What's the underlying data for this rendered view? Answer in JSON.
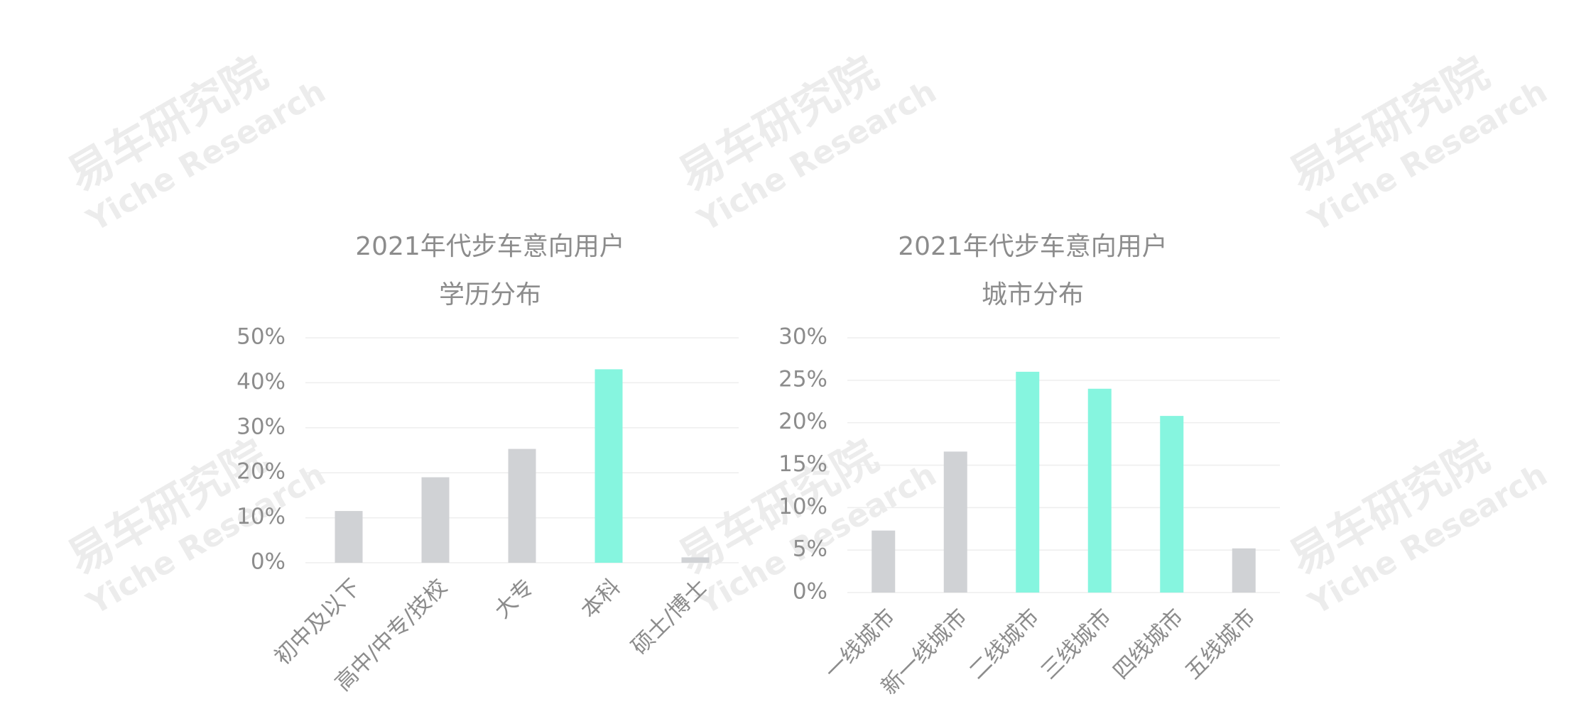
{
  "watermark": {
    "title": "易车研究院",
    "subtitle": "Yiche Research"
  },
  "chart_data": [
    {
      "type": "bar",
      "title": "2021年代步车意向用户",
      "subtitle": "学历分布",
      "categories": [
        "初中及以下",
        "高中/中专/技校",
        "大专",
        "本科",
        "硕士/博士"
      ],
      "values": [
        11.5,
        19,
        25.3,
        43,
        1.2
      ],
      "colors": [
        "#d0d2d5",
        "#d0d2d5",
        "#d0d2d5",
        "#86f5df",
        "#d0d2d5"
      ],
      "ylim": [
        0,
        50
      ],
      "yticks": [
        {
          "value": 0,
          "label": "0%"
        },
        {
          "value": 10,
          "label": "10%"
        },
        {
          "value": 20,
          "label": "20%"
        },
        {
          "value": 30,
          "label": "30%"
        },
        {
          "value": 40,
          "label": "40%"
        },
        {
          "value": 50,
          "label": "50%"
        }
      ],
      "grid": true
    },
    {
      "type": "bar",
      "title": "2021年代步车意向用户",
      "subtitle": "城市分布",
      "categories": [
        "一线城市",
        "新一线城市",
        "二线城市",
        "三线城市",
        "四线城市",
        "五线城市"
      ],
      "values": [
        7.3,
        16.6,
        26,
        24,
        20.8,
        5.2
      ],
      "colors": [
        "#d0d2d5",
        "#d0d2d5",
        "#86f5df",
        "#86f5df",
        "#86f5df",
        "#d0d2d5"
      ],
      "ylim": [
        0,
        30
      ],
      "yticks": [
        {
          "value": 0,
          "label": "0%"
        },
        {
          "value": 5,
          "label": "5%"
        },
        {
          "value": 10,
          "label": "10%"
        },
        {
          "value": 15,
          "label": "15%"
        },
        {
          "value": 20,
          "label": "20%"
        },
        {
          "value": 25,
          "label": "25%"
        },
        {
          "value": 30,
          "label": "30%"
        }
      ],
      "grid": true
    }
  ]
}
